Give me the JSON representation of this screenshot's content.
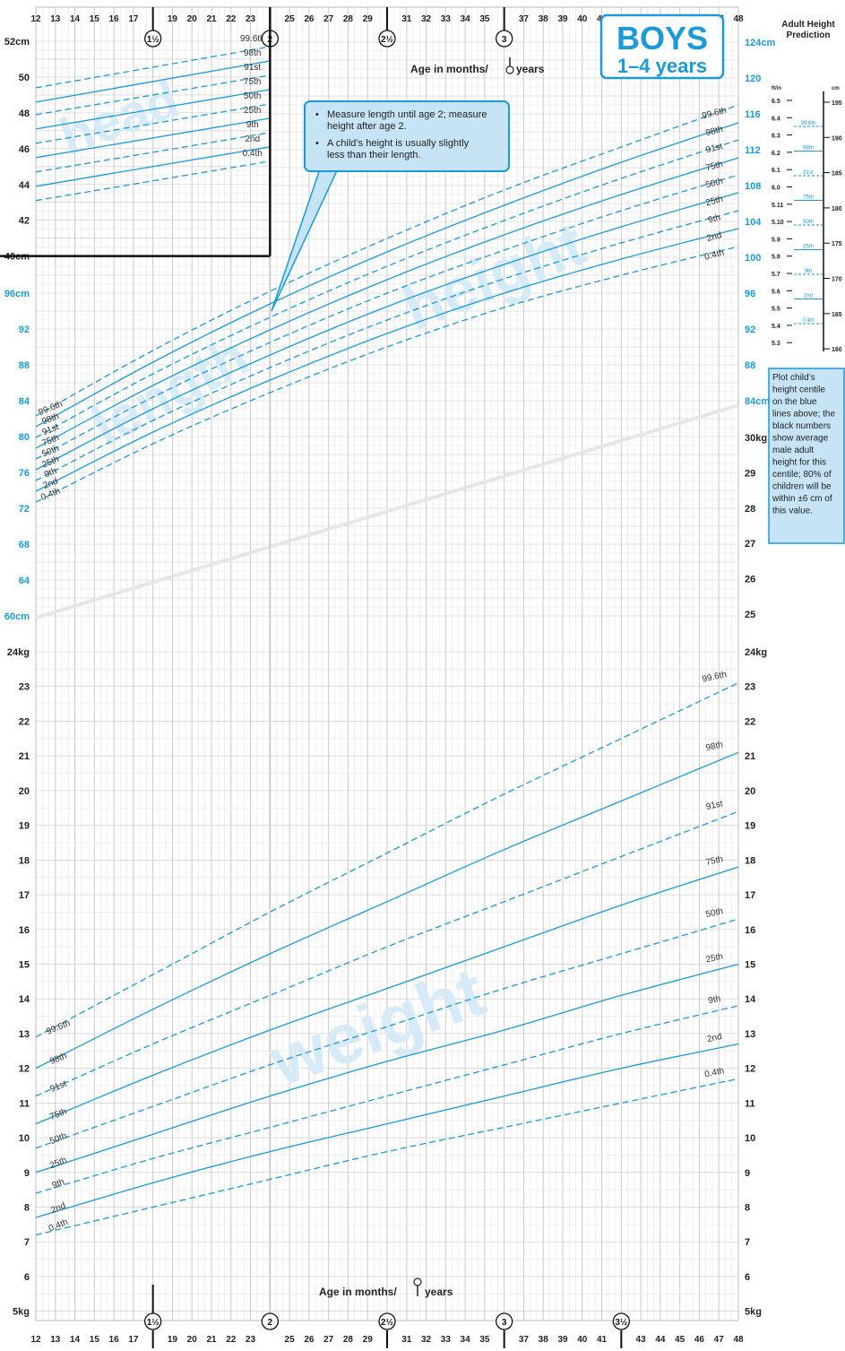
{
  "title": "BOYS",
  "subtitle": "1–4 years",
  "age_label": "Age in months/",
  "age_label_years": "years",
  "notes": [
    "Measure length until age 2; measure height after age 2.",
    "A child’s height is usually slightly less than their length."
  ],
  "section_labels": {
    "head": "head",
    "length": "length",
    "height": "height",
    "weight": "weight"
  },
  "adult_height": {
    "title": "Adult Height Prediction",
    "unit_ft": "ft/in",
    "unit_cm": "cm",
    "ft_ticks": [
      "6.5",
      "6.4",
      "6.3",
      "6.2",
      "6.1",
      "6.0",
      "5.11",
      "5.10",
      "5.9",
      "5.8",
      "5.7",
      "5.6",
      "5.5",
      "5.4",
      "5.3"
    ],
    "cm_ticks": [
      "195",
      "190",
      "185",
      "180",
      "175",
      "170",
      "165",
      "160"
    ],
    "centiles": [
      "99.6th",
      "98th",
      "91st",
      "75th",
      "50th",
      "25th",
      "9th",
      "2nd",
      "0.4th"
    ],
    "note": "Plot child’s height centile on the blue lines above; the black numbers show average male adult height for this centile; 80% of children will be within ±6 cm of this value."
  },
  "colors": {
    "accent": "#1a9ad6",
    "grid_major": "#c8c8c8",
    "grid_minor": "#e6e6e6",
    "watermark": "#d6ebf7",
    "text": "#222222"
  },
  "chart_data": [
    {
      "type": "line",
      "name": "head",
      "title": "head",
      "xlabel": "Age in months/years",
      "ylabel": "cm",
      "xlim": [
        12,
        24
      ],
      "ylim": [
        40,
        52
      ],
      "y_ticks": [
        "52cm",
        "50",
        "48",
        "46",
        "44",
        "42",
        "40cm"
      ],
      "x": [
        12,
        24
      ],
      "series": [
        {
          "name": "99.6th",
          "dashed": true,
          "values": [
            49.4,
            51.7
          ]
        },
        {
          "name": "98th",
          "dashed": false,
          "values": [
            48.6,
            50.9
          ]
        },
        {
          "name": "91st",
          "dashed": true,
          "values": [
            47.9,
            50.1
          ]
        },
        {
          "name": "75th",
          "dashed": false,
          "values": [
            47.1,
            49.3
          ]
        },
        {
          "name": "50th",
          "dashed": true,
          "values": [
            46.3,
            48.5
          ]
        },
        {
          "name": "25th",
          "dashed": false,
          "values": [
            45.5,
            47.7
          ]
        },
        {
          "name": "9th",
          "dashed": true,
          "values": [
            44.7,
            46.9
          ]
        },
        {
          "name": "2nd",
          "dashed": false,
          "values": [
            43.9,
            46.1
          ]
        },
        {
          "name": "0.4th",
          "dashed": true,
          "values": [
            43.1,
            45.3
          ]
        }
      ]
    },
    {
      "type": "line",
      "name": "length / height",
      "title": "length height",
      "xlabel": "Age in months/years",
      "ylabel": "cm",
      "xlim": [
        12,
        48
      ],
      "ylim": [
        60,
        124
      ],
      "y_ticks_left": [
        "96cm",
        "92",
        "88",
        "84",
        "80",
        "76",
        "72",
        "68",
        "64",
        "60cm"
      ],
      "y_ticks_right": [
        "124cm",
        "120",
        "116",
        "112",
        "108",
        "104",
        "100",
        "96",
        "92",
        "88",
        "84cm"
      ],
      "x": [
        12,
        18,
        24,
        30,
        36,
        42,
        48
      ],
      "series": [
        {
          "name": "99.6th",
          "dashed": true,
          "values": [
            82.3,
            89.6,
            96.2,
            102.1,
            107.5,
            112.3,
            117.0
          ]
        },
        {
          "name": "98th",
          "dashed": false,
          "values": [
            81.1,
            88.3,
            94.8,
            100.6,
            105.8,
            110.6,
            115.0
          ]
        },
        {
          "name": "91st",
          "dashed": true,
          "values": [
            79.9,
            87.0,
            93.3,
            99.0,
            104.1,
            108.8,
            113.1
          ]
        },
        {
          "name": "75th",
          "dashed": false,
          "values": [
            78.7,
            85.7,
            91.9,
            97.5,
            102.5,
            107.0,
            111.1
          ]
        },
        {
          "name": "50th",
          "dashed": true,
          "values": [
            77.5,
            84.4,
            90.5,
            96.0,
            100.8,
            105.2,
            109.2
          ]
        },
        {
          "name": "25th",
          "dashed": false,
          "values": [
            76.3,
            83.1,
            89.1,
            94.5,
            99.2,
            103.4,
            107.2
          ]
        },
        {
          "name": "9th",
          "dashed": true,
          "values": [
            75.1,
            81.8,
            87.7,
            93.0,
            97.6,
            101.6,
            105.2
          ]
        },
        {
          "name": "2nd",
          "dashed": false,
          "values": [
            73.9,
            80.5,
            86.3,
            91.5,
            96.0,
            99.8,
            103.2
          ]
        },
        {
          "name": "0.4th",
          "dashed": true,
          "values": [
            72.7,
            79.2,
            84.9,
            90.0,
            94.4,
            98.0,
            101.2
          ]
        }
      ]
    },
    {
      "type": "line",
      "name": "weight",
      "title": "weight",
      "xlabel": "Age in months/years",
      "ylabel": "kg",
      "xlim": [
        12,
        48
      ],
      "ylim": [
        5,
        24
      ],
      "y_ticks": [
        "24kg",
        "23",
        "22",
        "21",
        "20",
        "19",
        "18",
        "17",
        "16",
        "15",
        "14",
        "13",
        "12",
        "11",
        "10",
        "9",
        "8",
        "7",
        "6",
        "5kg"
      ],
      "x": [
        12,
        18,
        24,
        30,
        36,
        42,
        48
      ],
      "series": [
        {
          "name": "99.6th",
          "dashed": true,
          "values": [
            12.9,
            14.7,
            16.5,
            18.2,
            19.9,
            21.5,
            23.1
          ]
        },
        {
          "name": "98th",
          "dashed": false,
          "values": [
            12.0,
            13.7,
            15.3,
            16.8,
            18.3,
            19.7,
            21.1
          ]
        },
        {
          "name": "91st",
          "dashed": true,
          "values": [
            11.2,
            12.7,
            14.1,
            15.5,
            16.8,
            18.1,
            19.4
          ]
        },
        {
          "name": "75th",
          "dashed": false,
          "values": [
            10.4,
            11.8,
            13.1,
            14.3,
            15.5,
            16.7,
            17.8
          ]
        },
        {
          "name": "50th",
          "dashed": true,
          "values": [
            9.7,
            10.9,
            12.1,
            13.2,
            14.3,
            15.3,
            16.3
          ]
        },
        {
          "name": "25th",
          "dashed": false,
          "values": [
            9.0,
            10.1,
            11.2,
            12.2,
            13.1,
            14.1,
            15.0
          ]
        },
        {
          "name": "9th",
          "dashed": true,
          "values": [
            8.4,
            9.4,
            10.3,
            11.2,
            12.1,
            13.0,
            13.8
          ]
        },
        {
          "name": "2nd",
          "dashed": false,
          "values": [
            7.7,
            8.7,
            9.6,
            10.4,
            11.2,
            12.0,
            12.7
          ]
        },
        {
          "name": "0.4th",
          "dashed": true,
          "values": [
            7.2,
            8.0,
            8.8,
            9.6,
            10.3,
            11.0,
            11.7
          ]
        }
      ]
    }
  ],
  "x_axis": {
    "months": [
      "12",
      "13",
      "14",
      "15",
      "16",
      "17",
      "19",
      "20",
      "21",
      "22",
      "23",
      "25",
      "26",
      "27",
      "28",
      "29",
      "31",
      "32",
      "33",
      "34",
      "35",
      "37",
      "38",
      "39",
      "40",
      "41",
      "43",
      "44",
      "45",
      "46",
      "47",
      "48"
    ],
    "year_marks_top": [
      "1½",
      "2",
      "2½",
      "3"
    ],
    "year_marks_bottom": [
      "1½",
      "2",
      "2½",
      "3",
      "3½"
    ]
  }
}
